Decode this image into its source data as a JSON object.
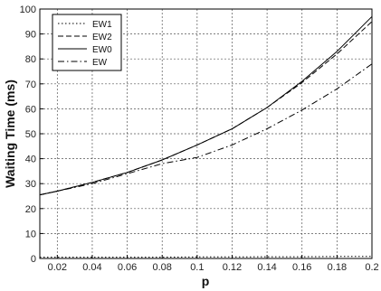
{
  "chart_data": {
    "type": "line",
    "title": "",
    "xlabel": "p",
    "ylabel": "Waiting Time (ms)",
    "xlim": [
      0.01,
      0.2
    ],
    "ylim": [
      0,
      100
    ],
    "x_ticks": [
      0.02,
      0.04,
      0.06,
      0.08,
      0.1,
      0.12,
      0.14,
      0.16,
      0.18,
      0.2
    ],
    "x_tick_labels": [
      "0.02",
      "0.04",
      "0.06",
      "0.08",
      "0.1",
      "0.12",
      "0.14",
      "0.16",
      "0.18",
      "0.2"
    ],
    "y_ticks": [
      0,
      10,
      20,
      30,
      40,
      50,
      60,
      70,
      80,
      90,
      100
    ],
    "y_tick_labels": [
      "0",
      "10",
      "20",
      "30",
      "40",
      "50",
      "60",
      "70",
      "80",
      "90",
      "100"
    ],
    "grid": true,
    "legend_position": "top-left",
    "x": [
      0.01,
      0.02,
      0.04,
      0.06,
      0.08,
      0.1,
      0.12,
      0.14,
      0.16,
      0.18,
      0.2
    ],
    "series": [
      {
        "name": "EW1",
        "style": "dotted",
        "values": [
          0.5,
          0.5,
          0.5,
          0.5,
          0.5,
          0.6,
          0.6,
          0.7,
          0.7,
          0.8,
          0.8
        ]
      },
      {
        "name": "EW2",
        "style": "dashed",
        "values": [
          25.5,
          27,
          30.5,
          34.5,
          39.5,
          45.5,
          52,
          60.5,
          70.5,
          82,
          95
        ]
      },
      {
        "name": "EW0",
        "style": "solid",
        "values": [
          25.5,
          27,
          30.5,
          34.5,
          39.5,
          45.5,
          52,
          60.5,
          71,
          83,
          97
        ]
      },
      {
        "name": "EW",
        "style": "dashdot",
        "values": [
          25.5,
          27,
          30,
          34,
          38,
          40.5,
          45.5,
          52,
          59.5,
          68,
          78
        ]
      }
    ]
  }
}
